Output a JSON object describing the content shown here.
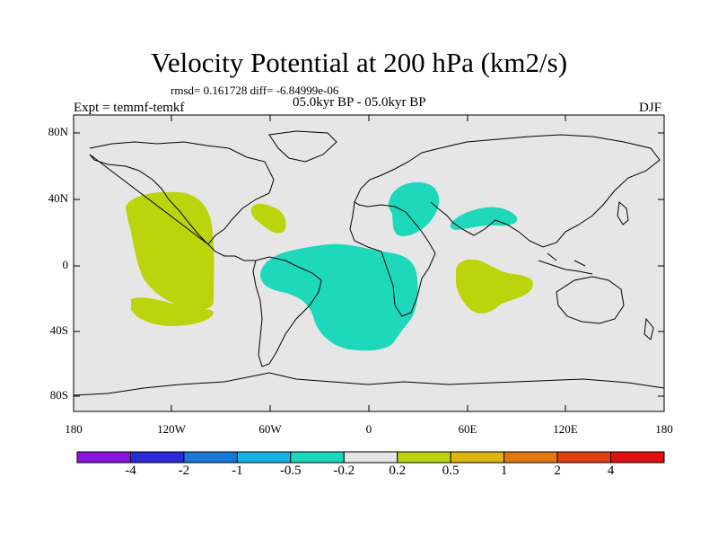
{
  "title": "Velocity Potential at 200 hPa (km2/s)",
  "stats": "rmsd= 0.161728 diff= -6.84999e-06",
  "experiment": "Expt = temmf-temkf",
  "period": "05.0kyr BP - 05.0kyr BP",
  "season": "DJF",
  "map": {
    "lat_labels": [
      "80N",
      "40N",
      "0",
      "40S",
      "80S"
    ],
    "lon_labels": [
      "180",
      "120W",
      "60W",
      "0",
      "60E",
      "120E",
      "180"
    ],
    "background_color": "#e6e6e6",
    "positive_color": "#bcd40c",
    "negative_color": "#1ed8bc"
  },
  "colorbar": {
    "colors": [
      "#8a14e0",
      "#2a2ad8",
      "#1878d8",
      "#16b4e0",
      "#1ed8bc",
      "#e6e6e6",
      "#bcd40c",
      "#e0b410",
      "#e07810",
      "#e04010",
      "#e01010"
    ],
    "labels": [
      "-4",
      "-2",
      "-1",
      "-0.5",
      "-0.2",
      "0.2",
      "0.5",
      "1",
      "2",
      "4"
    ]
  }
}
